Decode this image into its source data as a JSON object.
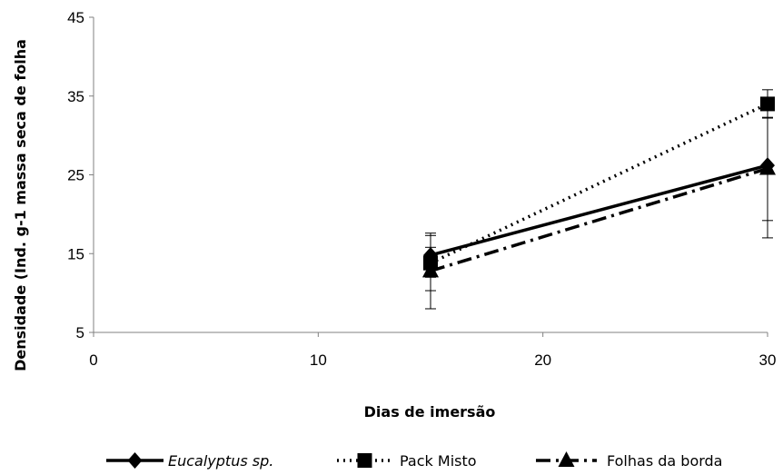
{
  "chart_data": {
    "type": "line",
    "xlabel": "Dias de imersão",
    "ylabel": "Densidade (Ind. g-1 massa seca de folha",
    "xlim": [
      0,
      30
    ],
    "ylim": [
      5,
      45
    ],
    "xticks": [
      "0",
      "10",
      "20",
      "30"
    ],
    "yticks": [
      "5",
      "15",
      "25",
      "35",
      "45"
    ],
    "grid": false,
    "legend_position": "bottom",
    "x": [
      15,
      30
    ],
    "series": [
      {
        "name": "Eucalyptus sp.",
        "marker": "diamond",
        "line": "solid",
        "color": "#000000",
        "values": [
          14.8,
          26.2
        ],
        "err_low": [
          2.8,
          7.0
        ],
        "err_high": [
          2.8,
          7.0
        ]
      },
      {
        "name": "Pack Misto",
        "marker": "square",
        "line": "dotted",
        "color": "#000000",
        "values": [
          13.8,
          34.0
        ],
        "err_low": [
          3.5,
          1.8
        ],
        "err_high": [
          3.5,
          1.8
        ]
      },
      {
        "name": "Folhas da borda",
        "marker": "triangle",
        "line": "dash-dot",
        "color": "#000000",
        "values": [
          12.8,
          25.8
        ],
        "err_low": [
          4.8,
          8.8
        ],
        "err_high": [
          3.0,
          6.5
        ]
      }
    ]
  }
}
